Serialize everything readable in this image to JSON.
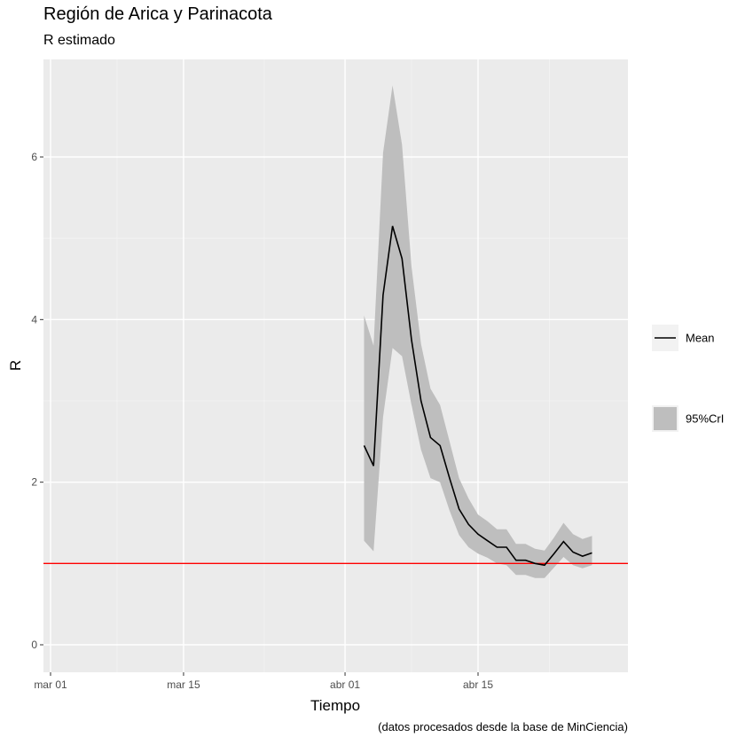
{
  "chart_data": {
    "type": "line",
    "title": "Región de Arica y Parinacota",
    "subtitle": "R estimado",
    "xlabel": "Tiempo",
    "ylabel": "R",
    "caption": "(datos procesados desde la base de MinCiencia)",
    "x_ticks": [
      {
        "date": "2020-03-01",
        "label": "mar 01"
      },
      {
        "date": "2020-03-15",
        "label": "mar 15"
      },
      {
        "date": "2020-04-01",
        "label": "abr 01"
      },
      {
        "date": "2020-04-15",
        "label": "abr 15"
      }
    ],
    "y_ticks": [
      0,
      2,
      4,
      6
    ],
    "xlim": [
      "2020-03-01",
      "2020-04-30"
    ],
    "ylim": [
      -0.35,
      6.95
    ],
    "grid": true,
    "reference_line": {
      "y": 1,
      "color": "#ff0000"
    },
    "legend": {
      "position": "right",
      "entries": [
        {
          "label": "Mean",
          "kind": "line",
          "color": "#000000"
        },
        {
          "label": "95%CrI",
          "kind": "ribbon",
          "color": "#bfbfbf"
        }
      ]
    },
    "series": [
      {
        "name": "Mean",
        "x": [
          "2020-04-03",
          "2020-04-04",
          "2020-04-05",
          "2020-04-06",
          "2020-04-07",
          "2020-04-08",
          "2020-04-09",
          "2020-04-10",
          "2020-04-11",
          "2020-04-12",
          "2020-04-13",
          "2020-04-14",
          "2020-04-15",
          "2020-04-16",
          "2020-04-17",
          "2020-04-18",
          "2020-04-19",
          "2020-04-20",
          "2020-04-21",
          "2020-04-22",
          "2020-04-23",
          "2020-04-24",
          "2020-04-25",
          "2020-04-26",
          "2020-04-27"
        ],
        "y": [
          2.45,
          2.2,
          4.3,
          5.15,
          4.75,
          3.75,
          3.0,
          2.55,
          2.45,
          2.05,
          1.67,
          1.48,
          1.36,
          1.28,
          1.2,
          1.2,
          1.04,
          1.04,
          1.0,
          0.98,
          1.12,
          1.27,
          1.14,
          1.09,
          1.13
        ]
      },
      {
        "name": "95%CrI",
        "x": [
          "2020-04-03",
          "2020-04-04",
          "2020-04-05",
          "2020-04-06",
          "2020-04-07",
          "2020-04-08",
          "2020-04-09",
          "2020-04-10",
          "2020-04-11",
          "2020-04-12",
          "2020-04-13",
          "2020-04-14",
          "2020-04-15",
          "2020-04-16",
          "2020-04-17",
          "2020-04-18",
          "2020-04-19",
          "2020-04-20",
          "2020-04-21",
          "2020-04-22",
          "2020-04-23",
          "2020-04-24",
          "2020-04-25",
          "2020-04-26",
          "2020-04-27"
        ],
        "lower": [
          1.28,
          1.15,
          2.8,
          3.65,
          3.55,
          2.95,
          2.4,
          2.05,
          2.0,
          1.65,
          1.35,
          1.2,
          1.12,
          1.07,
          1.0,
          0.98,
          0.86,
          0.86,
          0.82,
          0.82,
          0.95,
          1.08,
          0.98,
          0.94,
          0.98
        ],
        "upper": [
          4.05,
          3.68,
          6.05,
          6.88,
          6.15,
          4.65,
          3.7,
          3.15,
          2.95,
          2.5,
          2.05,
          1.8,
          1.6,
          1.52,
          1.42,
          1.42,
          1.24,
          1.24,
          1.18,
          1.16,
          1.32,
          1.5,
          1.36,
          1.3,
          1.34
        ]
      }
    ]
  }
}
